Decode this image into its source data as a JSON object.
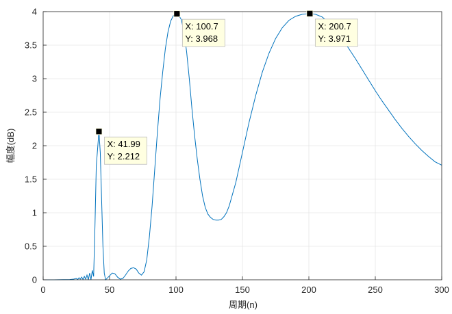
{
  "chart_data": {
    "type": "line",
    "title": "",
    "xlabel": "周期(n)",
    "ylabel": "幅度(dB)",
    "xlim": [
      0,
      300
    ],
    "ylim": [
      0,
      4
    ],
    "xticks": [
      0,
      50,
      100,
      150,
      200,
      250,
      300
    ],
    "yticks": [
      0,
      0.5,
      1,
      1.5,
      2,
      2.5,
      3,
      3.5,
      4
    ],
    "xtick_labels": [
      "0",
      "50",
      "100",
      "150",
      "200",
      "250",
      "300"
    ],
    "ytick_labels": [
      "0",
      "0.5",
      "1",
      "1.5",
      "2",
      "2.5",
      "3",
      "3.5",
      "4"
    ],
    "grid": true,
    "line_color": "#0072bd",
    "series": [
      {
        "points": [
          [
            0,
            0
          ],
          [
            8,
            0
          ],
          [
            15,
            0.002
          ],
          [
            20,
            0.004
          ],
          [
            23,
            0.01
          ],
          [
            25,
            0.02
          ],
          [
            26,
            0.005
          ],
          [
            27,
            0.03
          ],
          [
            28,
            0.01
          ],
          [
            29,
            0.04
          ],
          [
            30,
            0.005
          ],
          [
            31,
            0.05
          ],
          [
            32,
            0.01
          ],
          [
            33,
            0.07
          ],
          [
            34,
            0.0
          ],
          [
            35,
            0.1
          ],
          [
            36,
            0.0
          ],
          [
            37,
            0.14
          ],
          [
            38,
            0.05
          ],
          [
            39,
            0.8
          ],
          [
            40,
            1.7
          ],
          [
            41.99,
            2.212
          ],
          [
            43,
            1.9
          ],
          [
            44,
            1.2
          ],
          [
            45,
            0.5
          ],
          [
            46,
            0.1
          ],
          [
            47,
            0.0
          ],
          [
            48,
            0.02
          ],
          [
            50,
            0.06
          ],
          [
            52,
            0.1
          ],
          [
            54,
            0.09
          ],
          [
            56,
            0.04
          ],
          [
            58,
            0.01
          ],
          [
            60,
            0.02
          ],
          [
            62,
            0.07
          ],
          [
            64,
            0.13
          ],
          [
            66,
            0.17
          ],
          [
            68,
            0.18
          ],
          [
            70,
            0.16
          ],
          [
            72,
            0.1
          ],
          [
            74,
            0.07
          ],
          [
            76,
            0.12
          ],
          [
            78,
            0.3
          ],
          [
            80,
            0.65
          ],
          [
            82,
            1.1
          ],
          [
            84,
            1.65
          ],
          [
            86,
            2.2
          ],
          [
            88,
            2.7
          ],
          [
            90,
            3.1
          ],
          [
            92,
            3.45
          ],
          [
            94,
            3.7
          ],
          [
            96,
            3.86
          ],
          [
            98,
            3.94
          ],
          [
            100.7,
            3.968
          ],
          [
            102,
            3.95
          ],
          [
            104,
            3.88
          ],
          [
            106,
            3.7
          ],
          [
            108,
            3.4
          ],
          [
            110,
            3.0
          ],
          [
            112,
            2.55
          ],
          [
            114,
            2.15
          ],
          [
            116,
            1.8
          ],
          [
            118,
            1.5
          ],
          [
            120,
            1.25
          ],
          [
            122,
            1.08
          ],
          [
            124,
            0.98
          ],
          [
            126,
            0.93
          ],
          [
            128,
            0.9
          ],
          [
            130,
            0.89
          ],
          [
            132,
            0.89
          ],
          [
            134,
            0.9
          ],
          [
            136,
            0.94
          ],
          [
            138,
            1.0
          ],
          [
            140,
            1.1
          ],
          [
            145,
            1.45
          ],
          [
            150,
            1.9
          ],
          [
            155,
            2.35
          ],
          [
            160,
            2.75
          ],
          [
            165,
            3.1
          ],
          [
            170,
            3.38
          ],
          [
            175,
            3.6
          ],
          [
            180,
            3.76
          ],
          [
            185,
            3.87
          ],
          [
            190,
            3.93
          ],
          [
            195,
            3.96
          ],
          [
            200.7,
            3.971
          ],
          [
            205,
            3.96
          ],
          [
            210,
            3.92
          ],
          [
            215,
            3.84
          ],
          [
            220,
            3.73
          ],
          [
            225,
            3.6
          ],
          [
            230,
            3.45
          ],
          [
            235,
            3.3
          ],
          [
            240,
            3.14
          ],
          [
            245,
            2.98
          ],
          [
            250,
            2.82
          ],
          [
            255,
            2.67
          ],
          [
            260,
            2.53
          ],
          [
            265,
            2.39
          ],
          [
            270,
            2.26
          ],
          [
            275,
            2.14
          ],
          [
            280,
            2.03
          ],
          [
            285,
            1.93
          ],
          [
            290,
            1.84
          ],
          [
            295,
            1.76
          ],
          [
            300,
            1.71
          ]
        ]
      }
    ],
    "annotations": [
      {
        "x": 41.99,
        "y": 2.212,
        "x_label": "X: 41.99",
        "y_label": "Y: 2.212"
      },
      {
        "x": 100.7,
        "y": 3.968,
        "x_label": "X: 100.7",
        "y_label": "Y: 3.968"
      },
      {
        "x": 200.7,
        "y": 3.971,
        "x_label": "X: 200.7",
        "y_label": "Y: 3.971"
      }
    ]
  }
}
